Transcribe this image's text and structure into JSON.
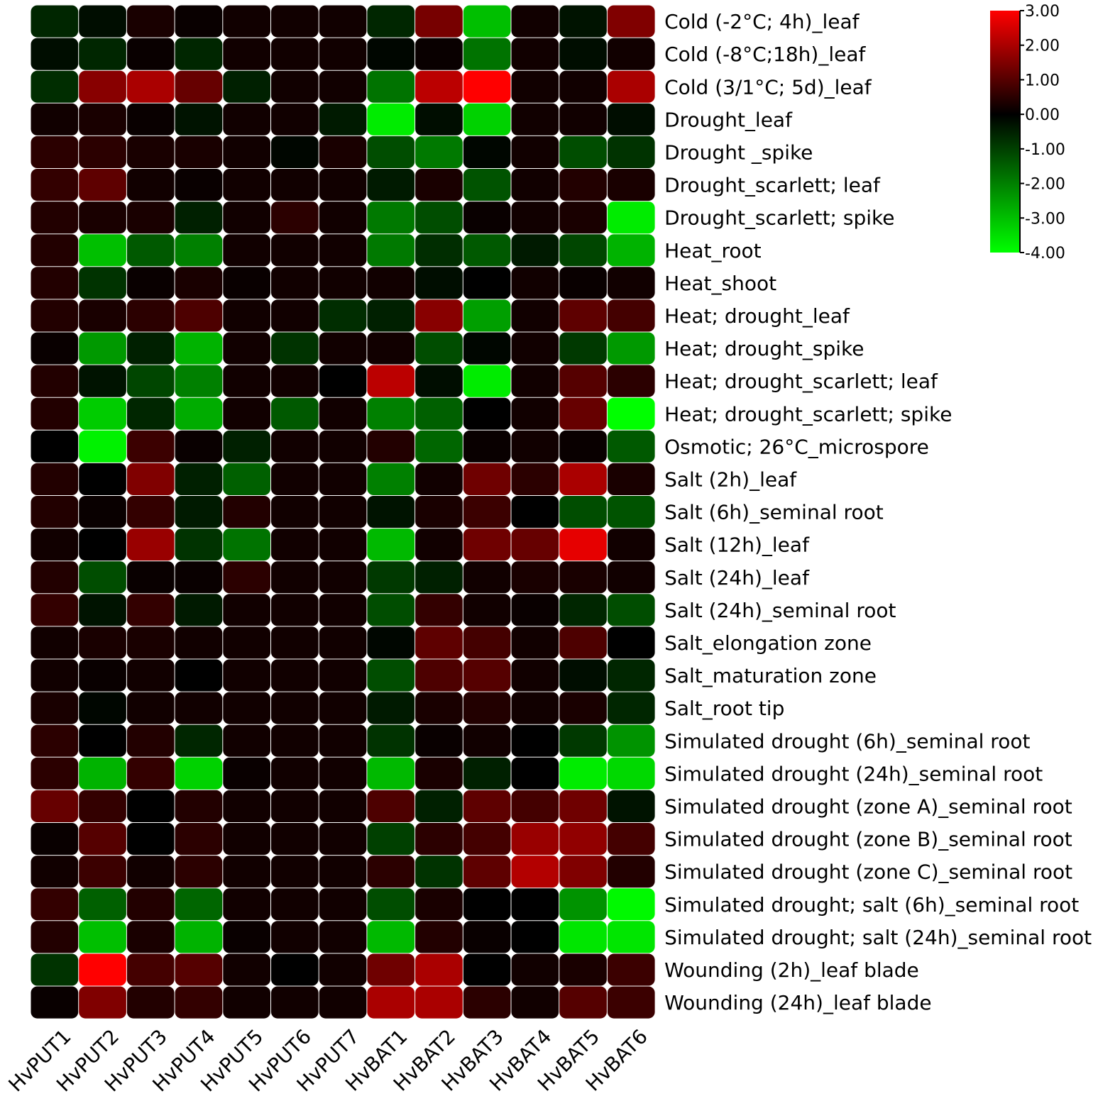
{
  "chart_data": {
    "type": "heatmap",
    "title": "",
    "xlabel": "",
    "ylabel": "",
    "columns": [
      "HvPUT1",
      "HvPUT2",
      "HvPUT3",
      "HvPUT4",
      "HvPUT5",
      "HvPUT6",
      "HvPUT7",
      "HvBAT1",
      "HvBAT2",
      "HvBAT3",
      "HvBAT4",
      "HvBAT5",
      "HvBAT6"
    ],
    "rows": [
      "Cold (-2°C; 4h)_leaf",
      "Cold (-8°C;18h)_leaf",
      "Cold (3/1°C; 5d)_leaf",
      "Drought_leaf",
      "Drought _spike",
      "Drought_scarlett; leaf",
      "Drought_scarlett; spike",
      "Heat_root",
      "Heat_shoot",
      "Heat; drought_leaf",
      "Heat; drought_spike",
      "Heat; drought_scarlett; leaf",
      "Heat; drought_scarlett; spike",
      "Osmotic; 26°C_microspore",
      "Salt (2h)_leaf",
      "Salt (6h)_seminal root",
      "Salt (12h)_leaf",
      "Salt (24h)_leaf",
      "Salt (24h)_seminal root",
      "Salt_elongation zone",
      "Salt_maturation zone",
      "Salt_root tip",
      "Simulated drought (6h)_seminal root",
      "Simulated drought (24h)_seminal root",
      "Simulated drought (zone A)_seminal root",
      "Simulated drought (zone B)_seminal root",
      "Simulated drought (zone C)_seminal root",
      "Simulated drought; salt (6h)_seminal root",
      "Simulated drought; salt (24h)_seminal root",
      "Wounding (2h)_leaf blade",
      "Wounding (24h)_leaf blade"
    ],
    "values": [
      [
        -0.6,
        -0.2,
        0.3,
        0.1,
        0.2,
        0.2,
        0.2,
        -0.6,
        1.4,
        -3.0,
        0.2,
        -0.3,
        1.5
      ],
      [
        -0.2,
        -0.6,
        0.1,
        -0.6,
        0.2,
        0.2,
        0.2,
        -0.1,
        0.1,
        -1.8,
        0.2,
        -0.2,
        0.2
      ],
      [
        -0.7,
        1.6,
        2.0,
        1.2,
        -0.5,
        0.2,
        0.2,
        -1.8,
        2.2,
        3.0,
        0.2,
        0.2,
        2.0
      ],
      [
        0.2,
        0.3,
        0.1,
        -0.3,
        0.2,
        0.2,
        -0.4,
        -3.7,
        -0.2,
        -3.3,
        0.2,
        0.2,
        -0.2
      ],
      [
        0.5,
        0.5,
        0.3,
        0.3,
        0.2,
        -0.1,
        0.3,
        -1.2,
        -1.9,
        -0.1,
        0.2,
        -1.2,
        -0.8
      ],
      [
        0.6,
        1.1,
        0.2,
        0.1,
        0.2,
        0.2,
        0.2,
        -0.4,
        0.3,
        -1.3,
        0.2,
        0.4,
        0.3
      ],
      [
        0.4,
        0.3,
        0.3,
        -0.5,
        0.2,
        0.5,
        0.2,
        -1.9,
        -1.2,
        0.1,
        0.2,
        0.3,
        -3.7
      ],
      [
        0.4,
        -3.0,
        -1.4,
        -2.0,
        0.2,
        0.2,
        0.2,
        -1.9,
        -0.7,
        -1.4,
        -0.4,
        -1.1,
        -2.8
      ],
      [
        0.4,
        -0.8,
        0.1,
        0.3,
        0.1,
        0.2,
        0.2,
        0.2,
        -0.2,
        0.0,
        0.2,
        0.1,
        0.2
      ],
      [
        0.4,
        0.3,
        0.5,
        0.9,
        0.2,
        0.2,
        -0.7,
        -0.5,
        1.6,
        -2.5,
        0.2,
        1.1,
        0.8
      ],
      [
        0.1,
        -2.4,
        -0.5,
        -2.8,
        0.2,
        -0.8,
        0.2,
        0.2,
        -1.2,
        -0.1,
        0.2,
        -0.9,
        -2.4
      ],
      [
        0.4,
        -0.3,
        -1.1,
        -2.0,
        0.2,
        0.2,
        0.0,
        2.2,
        -0.2,
        -3.7,
        0.2,
        1.0,
        0.5
      ],
      [
        0.4,
        -3.2,
        -0.6,
        -2.7,
        0.2,
        -1.4,
        0.2,
        -2.0,
        -1.5,
        0.0,
        0.2,
        1.2,
        -4.0
      ],
      [
        0.0,
        -3.8,
        0.7,
        0.1,
        -0.5,
        0.2,
        0.2,
        0.4,
        -1.6,
        0.1,
        0.2,
        0.1,
        -1.4
      ],
      [
        0.4,
        0.0,
        1.5,
        -0.5,
        -1.5,
        0.2,
        0.2,
        -2.0,
        0.2,
        1.3,
        0.5,
        2.0,
        0.3
      ],
      [
        0.4,
        0.1,
        0.6,
        -0.4,
        0.4,
        0.2,
        0.2,
        -0.3,
        0.3,
        0.7,
        0.0,
        -1.2,
        -1.3
      ],
      [
        0.2,
        0.0,
        1.8,
        -0.8,
        -1.8,
        0.2,
        0.2,
        -2.9,
        0.2,
        1.3,
        1.2,
        2.7,
        0.2
      ],
      [
        0.4,
        -1.2,
        0.1,
        0.1,
        0.5,
        0.2,
        0.2,
        -0.9,
        -0.5,
        0.2,
        0.3,
        0.3,
        0.2
      ],
      [
        0.6,
        -0.3,
        0.6,
        -0.4,
        0.2,
        0.2,
        0.2,
        -1.2,
        0.6,
        0.2,
        0.1,
        -0.6,
        -1.2
      ],
      [
        0.2,
        0.3,
        0.3,
        0.2,
        0.2,
        0.2,
        0.2,
        -0.1,
        1.1,
        0.8,
        0.2,
        0.9,
        0.0
      ],
      [
        0.2,
        0.1,
        0.2,
        0.0,
        0.2,
        0.2,
        0.2,
        -1.2,
        0.9,
        1.0,
        0.2,
        -0.2,
        -0.6
      ],
      [
        0.3,
        -0.1,
        0.2,
        0.2,
        0.2,
        0.2,
        0.2,
        -0.4,
        0.3,
        0.4,
        0.2,
        0.3,
        -0.6
      ],
      [
        0.5,
        0.0,
        0.4,
        -0.6,
        0.2,
        0.2,
        0.2,
        -0.8,
        0.1,
        0.2,
        0.0,
        -0.9,
        -2.3
      ],
      [
        0.5,
        -2.8,
        0.6,
        -3.3,
        0.1,
        0.2,
        0.2,
        -2.9,
        0.3,
        -0.5,
        0.0,
        -3.7,
        -3.4
      ],
      [
        1.2,
        0.6,
        0.0,
        0.4,
        0.2,
        0.2,
        0.2,
        0.9,
        -0.5,
        1.1,
        0.8,
        1.3,
        -0.3
      ],
      [
        0.1,
        1.0,
        0.0,
        0.5,
        0.2,
        0.2,
        0.2,
        -1.0,
        0.5,
        0.8,
        1.8,
        1.7,
        0.8
      ],
      [
        0.2,
        0.7,
        0.2,
        0.5,
        0.2,
        0.2,
        0.2,
        0.5,
        -0.8,
        1.1,
        2.1,
        1.5,
        0.4
      ],
      [
        0.6,
        -1.5,
        0.4,
        -1.6,
        0.2,
        0.2,
        0.2,
        -1.2,
        0.3,
        0.0,
        0.0,
        -2.3,
        -3.9
      ],
      [
        0.4,
        -3.0,
        0.3,
        -2.8,
        0.1,
        0.2,
        0.2,
        -2.9,
        0.4,
        0.1,
        0.0,
        -3.6,
        -3.6
      ],
      [
        -0.8,
        3.0,
        0.8,
        1.0,
        0.2,
        0.0,
        0.2,
        1.3,
        2.0,
        0.0,
        0.2,
        0.3,
        0.7
      ],
      [
        0.1,
        1.5,
        0.4,
        0.6,
        0.2,
        0.2,
        0.2,
        2.0,
        2.0,
        0.5,
        0.2,
        1.0,
        0.7
      ]
    ],
    "colorscale": {
      "min": -4.0,
      "mid": 0.0,
      "max": 3.0,
      "min_color": "#00ff00",
      "mid_color": "#000000",
      "max_color": "#ff0000",
      "tick_values": [
        3,
        2,
        1,
        0,
        -1,
        -2,
        -3,
        -4
      ],
      "tick_labels": [
        "3.00",
        "2.00",
        "1.00",
        "0.00",
        "-1.00",
        "-2.00",
        "-3.00",
        "-4.00"
      ]
    },
    "grid_marker_color": "#ffffff",
    "legend_position": "top-right"
  }
}
